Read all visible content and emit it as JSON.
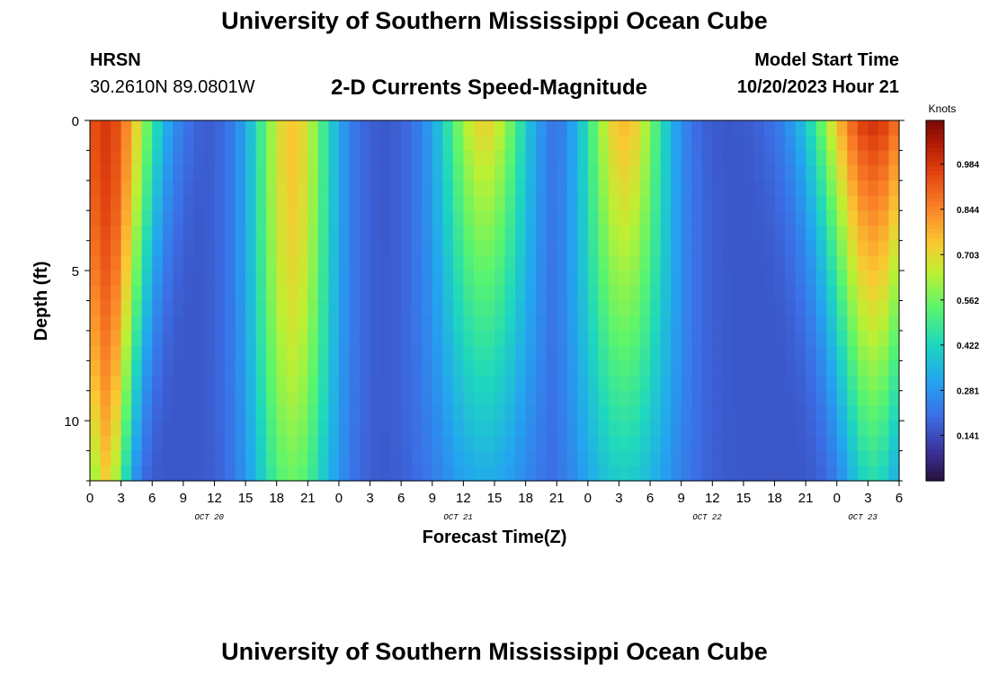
{
  "page_title": "University of Southern Mississippi Ocean Cube",
  "station": {
    "name": "HRSN",
    "coords": "30.2610N  89.0801W"
  },
  "chart_title": "2-D Currents Speed-Magnitude",
  "model_start": {
    "label": "Model Start Time",
    "value": "10/20/2023 Hour 21"
  },
  "footer_title": "University of Southern Mississippi Ocean Cube",
  "colors": {
    "plot_border": "#000000"
  },
  "chart_data": {
    "type": "heatmap",
    "title": "2-D Currents Speed-Magnitude",
    "xlabel": "Forecast Time(Z)",
    "ylabel": "Depth (ft)",
    "x_range_hours": [
      0,
      78
    ],
    "y_range_ft": [
      0,
      12
    ],
    "x_tick_labels": [
      "0",
      "3",
      "6",
      "9",
      "12",
      "15",
      "18",
      "21",
      "0",
      "3",
      "6",
      "9",
      "12",
      "15",
      "18",
      "21",
      "0",
      "3",
      "6",
      "9",
      "12",
      "15",
      "18",
      "21",
      "0",
      "3",
      "6"
    ],
    "x_tick_hours": [
      0,
      3,
      6,
      9,
      12,
      15,
      18,
      21,
      24,
      27,
      30,
      33,
      36,
      39,
      42,
      45,
      48,
      51,
      54,
      57,
      60,
      63,
      66,
      69,
      72,
      75,
      78
    ],
    "date_labels": [
      {
        "text": "OCT 20",
        "hour": 11.5
      },
      {
        "text": "OCT 21",
        "hour": 35.5
      },
      {
        "text": "OCT 22",
        "hour": 59.5
      },
      {
        "text": "OCT 23",
        "hour": 74.5
      }
    ],
    "y_tick_labels": [
      "0",
      "5",
      "10"
    ],
    "y_tick_values": [
      0,
      5,
      10
    ],
    "colorbar": {
      "label": "Knots",
      "min": 0.0,
      "max": 1.12,
      "tick_labels": [
        "0.984",
        "0.844",
        "0.703",
        "0.562",
        "0.422",
        "0.281",
        "0.141"
      ],
      "tick_values": [
        0.984,
        0.844,
        0.703,
        0.562,
        0.422,
        0.281,
        0.141
      ]
    },
    "peaks": [
      {
        "hour": 1.5,
        "surface": 0.98,
        "bottom": 0.72,
        "depth_decay": 0.3,
        "width_top": 4.5,
        "width_bottom": 2.2
      },
      {
        "hour": 19.5,
        "surface": 0.74,
        "bottom": 0.55,
        "depth_decay": 0.27,
        "width_top": 3.8,
        "width_bottom": 4.0
      },
      {
        "hour": 38.0,
        "surface": 0.72,
        "bottom": 0.33,
        "depth_decay": 0.55,
        "width_top": 4.2,
        "width_bottom": 5.0
      },
      {
        "hour": 51.5,
        "surface": 0.76,
        "bottom": 0.4,
        "depth_decay": 0.48,
        "width_top": 4.0,
        "width_bottom": 5.0
      },
      {
        "hour": 75.5,
        "surface": 1.0,
        "bottom": 0.44,
        "depth_decay": 0.55,
        "width_top": 5.5,
        "width_bottom": 3.0
      }
    ],
    "background_speed": 0.16
  }
}
